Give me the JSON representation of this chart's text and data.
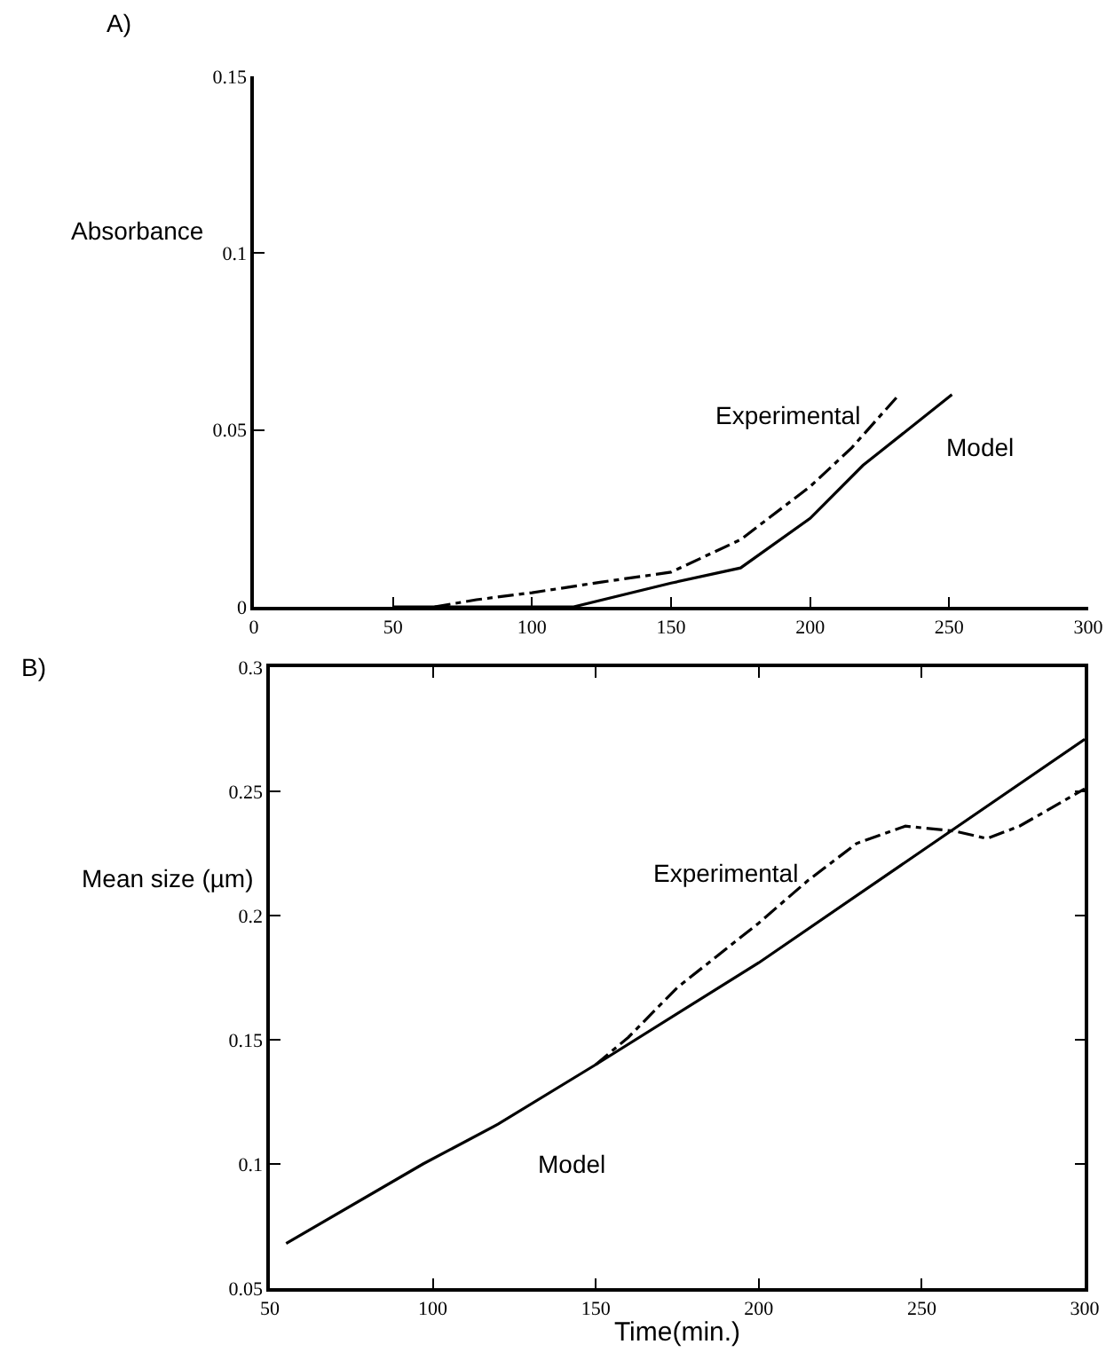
{
  "chart_data": [
    {
      "type": "line",
      "ylabel": "Absorbance",
      "xlim": [
        0,
        300
      ],
      "ylim": [
        0,
        0.15
      ],
      "xticks": [
        0,
        50,
        100,
        150,
        200,
        250,
        300
      ],
      "yticks": [
        0,
        0.05,
        0.1,
        0.15
      ],
      "grid": false,
      "legend": false,
      "marker": "none",
      "annotations": [
        "A)"
      ],
      "series": [
        {
          "name": "Experimental",
          "color": "#000000",
          "line_style": "dashed",
          "x": [
            65,
            80,
            100,
            125,
            150,
            175,
            200,
            215,
            232
          ],
          "values": [
            0,
            0.002,
            0.004,
            0.007,
            0.0098,
            0.019,
            0.034,
            0.045,
            0.06
          ]
        },
        {
          "name": "Model",
          "color": "#000000",
          "line_style": "solid",
          "x": [
            50,
            115,
            150,
            175,
            200,
            219,
            251
          ],
          "values": [
            0,
            0,
            0.0067,
            0.011,
            0.025,
            0.04,
            0.06
          ]
        }
      ]
    },
    {
      "type": "line",
      "xlabel": "Time(min.)",
      "ylabel": "Mean size (µm)",
      "xlim": [
        50,
        300
      ],
      "ylim": [
        0.05,
        0.3
      ],
      "xticks": [
        50,
        100,
        150,
        200,
        250,
        300
      ],
      "yticks": [
        0.05,
        0.1,
        0.15,
        0.2,
        0.25,
        0.3
      ],
      "grid": false,
      "legend": false,
      "marker": "none",
      "annotations": [
        "B)"
      ],
      "series": [
        {
          "name": "Experimental",
          "color": "#000000",
          "line_style": "dashed",
          "x": [
            150,
            160,
            175,
            200,
            215,
            230,
            245,
            260,
            270,
            280,
            300
          ],
          "values": [
            0.14,
            0.151,
            0.171,
            0.197,
            0.214,
            0.229,
            0.236,
            0.234,
            0.231,
            0.236,
            0.251
          ]
        },
        {
          "name": "Model",
          "color": "#000000",
          "line_style": "solid",
          "x": [
            55,
            97,
            120,
            150,
            200,
            250,
            300
          ],
          "values": [
            0.068,
            0.1,
            0.116,
            0.14,
            0.181,
            0.226,
            0.271
          ]
        }
      ]
    }
  ]
}
